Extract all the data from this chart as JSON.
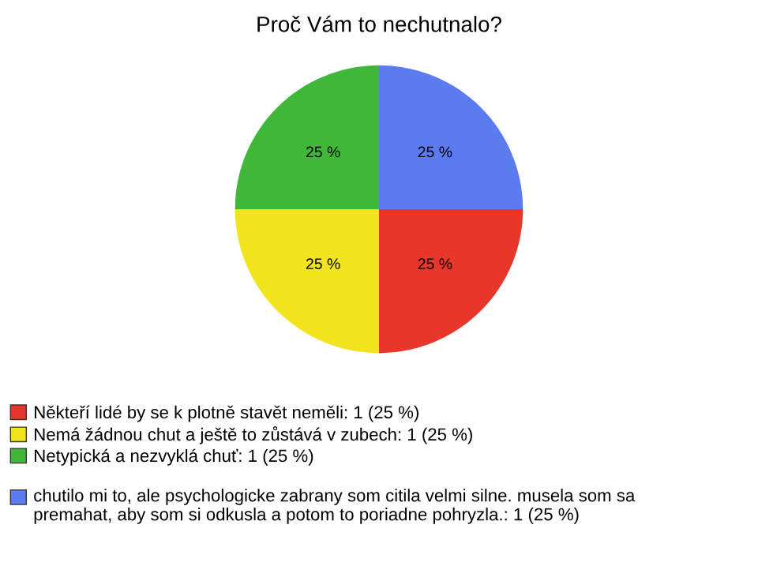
{
  "chart_data": {
    "type": "pie",
    "title": "Proč Vám to nechutnalo?",
    "categories": [
      "Někteří lidé by se k plotně stavět neměli: 1 (25 %)",
      "Nemá žádnou chut a ještě to zůstává v zubech: 1 (25 %)",
      "Netypická a nezvyklá chuť: 1 (25 %)",
      "chutilo mi to, ale psychologicke zabrany som citila velmi silne. musela som sa premahat, aby som si odkusla a potom to poriadne pohryzla.: 1 (25 %)"
    ],
    "values": [
      25,
      25,
      25,
      25
    ],
    "value_labels": [
      "25 %",
      "25 %",
      "25 %",
      "25 %"
    ],
    "colors": [
      "#e8372a",
      "#f2e41c",
      "#3fb83a",
      "#5b7bef"
    ],
    "legend": "bottom"
  }
}
